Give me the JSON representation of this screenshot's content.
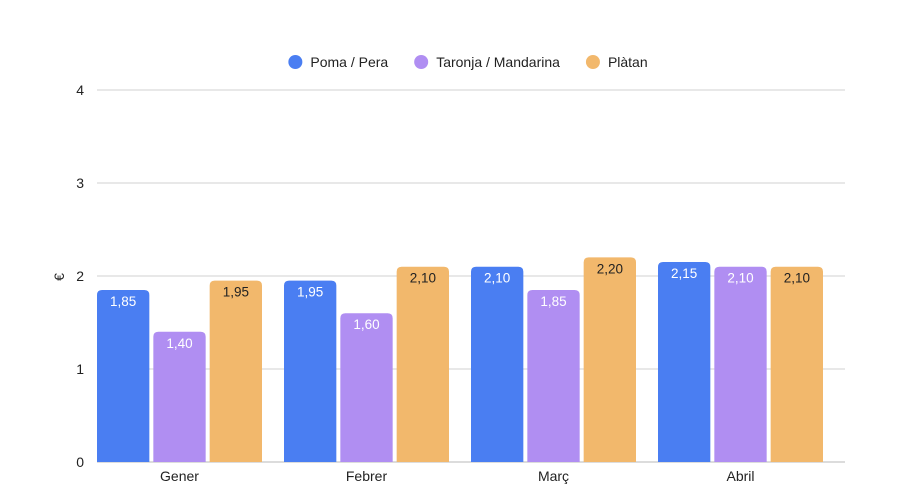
{
  "chart_data": {
    "type": "bar",
    "title": "",
    "xlabel": "",
    "ylabel": "€",
    "ylim": [
      0,
      4
    ],
    "yticks": [
      0,
      1,
      2,
      3,
      4
    ],
    "grid": true,
    "legend_position": "top",
    "categories": [
      "Gener",
      "Febrer",
      "Març",
      "Abril"
    ],
    "series": [
      {
        "name": "Poma / Pera",
        "color": "#4a7ef2",
        "label_color": "#ffffff",
        "values": [
          1.85,
          1.95,
          2.1,
          2.15
        ],
        "labels": [
          "1,85",
          "1,95",
          "2,10",
          "2,15"
        ]
      },
      {
        "name": "Taronja / Mandarina",
        "color": "#b08ef2",
        "label_color": "#ffffff",
        "values": [
          1.4,
          1.6,
          1.85,
          2.1
        ],
        "labels": [
          "1,40",
          "1,60",
          "1,85",
          "2,10"
        ]
      },
      {
        "name": "Plàtan",
        "color": "#f2b86c",
        "label_color": "#222222",
        "values": [
          1.95,
          2.1,
          2.2,
          2.1
        ],
        "labels": [
          "1,95",
          "2,10",
          "2,20",
          "2,10"
        ]
      }
    ]
  }
}
